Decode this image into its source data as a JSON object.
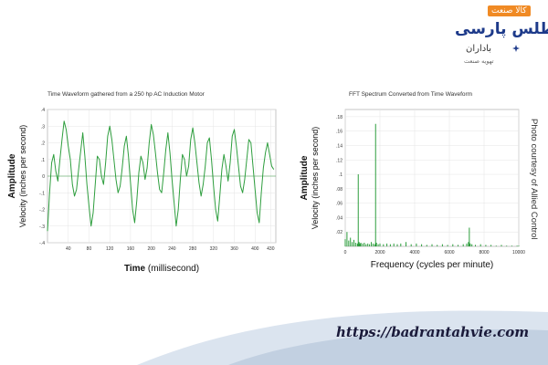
{
  "logo": {
    "badge": "کالا صنعت",
    "name": "اطلس پارسی",
    "sub": "باداران",
    "tagline": "تهویه صنعت"
  },
  "credit": "Photo courtesy of Allied Control",
  "url": "https://badrantahvie.com",
  "chart_data": [
    {
      "type": "line",
      "title": "Time Waveform gathered from a 250 hp AC Induction Motor",
      "xlabel_bold": "Time",
      "xlabel_rest": "(millisecond)",
      "ylabel_bold": "Amplitude",
      "ylabel_rest": "Velocity (inches per second)",
      "xlim": [
        0,
        440
      ],
      "ylim": [
        -0.4,
        0.4
      ],
      "x_ticks": [
        40,
        80,
        120,
        160,
        200,
        240,
        280,
        320,
        360,
        400,
        430
      ],
      "y_ticks": [
        0.4,
        0.3,
        0.2,
        0.1,
        0,
        -0.1,
        -0.2,
        -0.3,
        -0.4
      ],
      "color": "#2e9e3e",
      "grid": true,
      "series": [
        {
          "x": [
            0,
            4,
            8,
            12,
            16,
            20,
            24,
            28,
            32,
            36,
            40,
            44,
            48,
            52,
            56,
            60,
            64,
            68,
            72,
            76,
            80,
            84,
            88,
            92,
            96,
            100,
            104,
            108,
            112,
            116,
            120,
            124,
            128,
            132,
            136,
            140,
            144,
            148,
            152,
            156,
            160,
            164,
            168,
            172,
            176,
            180,
            184,
            188,
            192,
            196,
            200,
            204,
            208,
            212,
            216,
            220,
            224,
            228,
            232,
            236,
            240,
            244,
            248,
            252,
            256,
            260,
            264,
            268,
            272,
            276,
            280,
            284,
            288,
            292,
            296,
            300,
            304,
            308,
            312,
            316,
            320,
            324,
            328,
            332,
            336,
            340,
            344,
            348,
            352,
            356,
            360,
            364,
            368,
            372,
            376,
            380,
            384,
            388,
            392,
            396,
            400,
            404,
            408,
            412,
            416,
            420,
            424,
            428,
            432,
            436
          ],
          "values": [
            -0.33,
            -0.1,
            0.08,
            0.13,
            0.03,
            -0.03,
            0.1,
            0.22,
            0.33,
            0.28,
            0.18,
            0.1,
            -0.05,
            -0.12,
            -0.08,
            0.04,
            0.15,
            0.26,
            0.12,
            -0.05,
            -0.18,
            -0.3,
            -0.22,
            -0.05,
            0.12,
            0.1,
            0.0,
            -0.05,
            0.08,
            0.24,
            0.3,
            0.22,
            0.1,
            -0.02,
            -0.1,
            -0.06,
            0.05,
            0.18,
            0.24,
            0.12,
            -0.04,
            -0.2,
            -0.28,
            -0.15,
            0.02,
            0.12,
            0.08,
            -0.02,
            0.05,
            0.2,
            0.31,
            0.25,
            0.14,
            0.02,
            -0.08,
            -0.1,
            0.02,
            0.16,
            0.26,
            0.14,
            -0.02,
            -0.16,
            -0.3,
            -0.2,
            -0.02,
            0.13,
            0.1,
            0.0,
            0.06,
            0.22,
            0.29,
            0.2,
            0.08,
            -0.04,
            -0.12,
            -0.05,
            0.06,
            0.2,
            0.23,
            0.1,
            -0.06,
            -0.2,
            -0.27,
            -0.12,
            0.04,
            0.13,
            0.06,
            -0.03,
            0.08,
            0.24,
            0.28,
            0.18,
            0.06,
            -0.06,
            -0.1,
            -0.02,
            0.1,
            0.22,
            0.2,
            0.06,
            -0.08,
            -0.22,
            -0.28,
            -0.1,
            0.05,
            0.14,
            0.2,
            0.13,
            0.06,
            0.04
          ]
        }
      ]
    },
    {
      "type": "line",
      "title": "FFT Spectrum Converted from Time Waveform",
      "xlabel": "Frequency (cycles per minute)",
      "ylabel_bold": "Amplitude",
      "ylabel_rest": "Velocity (inches per second)",
      "xlim": [
        0,
        10000
      ],
      "ylim": [
        0,
        0.19
      ],
      "x_ticks": [
        0,
        2000,
        4000,
        6000,
        8000,
        10000
      ],
      "y_ticks": [
        0.18,
        0.16,
        0.14,
        0.12,
        0.1,
        0.08,
        0.06,
        0.04,
        0.02
      ],
      "color": "#2e9e3e",
      "grid": true,
      "series": [
        {
          "x": [
            0,
            100,
            200,
            300,
            400,
            500,
            600,
            700,
            750,
            800,
            850,
            900,
            1000,
            1100,
            1200,
            1300,
            1400,
            1500,
            1600,
            1700,
            1750,
            1800,
            1900,
            2000,
            2200,
            2400,
            2600,
            2800,
            3000,
            3200,
            3500,
            3800,
            4100,
            4400,
            4700,
            5000,
            5300,
            5600,
            5900,
            6200,
            6500,
            6800,
            7000,
            7100,
            7150,
            7200,
            7300,
            7500,
            7800,
            8100,
            8400,
            8700,
            9000,
            9300,
            9600,
            9900,
            10000
          ],
          "values": [
            0.01,
            0.02,
            0.008,
            0.012,
            0.006,
            0.009,
            0.005,
            0.004,
            0.1,
            0.006,
            0.004,
            0.005,
            0.004,
            0.005,
            0.003,
            0.004,
            0.003,
            0.006,
            0.004,
            0.003,
            0.17,
            0.005,
            0.003,
            0.004,
            0.003,
            0.004,
            0.003,
            0.004,
            0.003,
            0.004,
            0.006,
            0.003,
            0.004,
            0.003,
            0.002,
            0.003,
            0.002,
            0.003,
            0.002,
            0.003,
            0.002,
            0.003,
            0.004,
            0.006,
            0.026,
            0.004,
            0.003,
            0.002,
            0.003,
            0.002,
            0.002,
            0.001,
            0.002,
            0.001,
            0.001,
            0.001,
            0.001
          ]
        }
      ]
    }
  ]
}
